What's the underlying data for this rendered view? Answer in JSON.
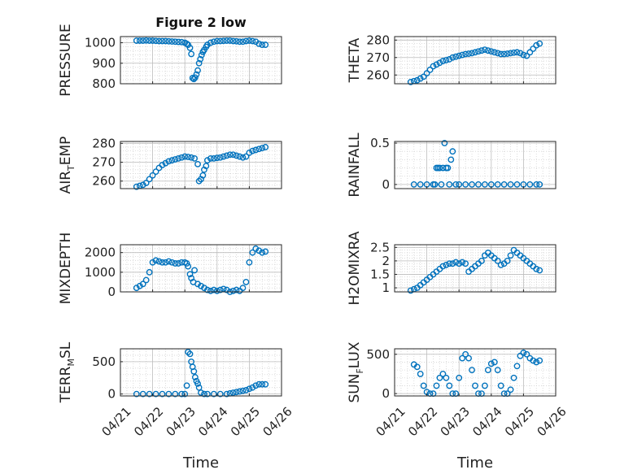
{
  "figure": {
    "title": "Figure 2 low",
    "xlabel": "Time",
    "date_ticks": [
      "04/21",
      "04/22",
      "04/23",
      "04/24",
      "04/25",
      "04/26"
    ],
    "marker_color": "#0072BD",
    "grid": "major and minor, dotted"
  },
  "chart_data": [
    {
      "type": "scatter",
      "ylabel": [
        {
          "t": "PRESSURE"
        }
      ],
      "xlim": [
        "04/21",
        "04/26"
      ],
      "ylim": [
        800,
        1030
      ],
      "yticks": [
        800,
        900,
        1000
      ],
      "x": [
        "04/21 12:00",
        "04/21 14:24",
        "04/21 16:48",
        "04/21 19:12",
        "04/21 21:36",
        "04/22 00:00",
        "04/22 02:24",
        "04/22 04:48",
        "04/22 07:12",
        "04/22 09:36",
        "04/22 12:00",
        "04/22 14:24",
        "04/22 16:48",
        "04/22 19:12",
        "04/22 21:36",
        "04/23 00:00",
        "04/23 01:26",
        "04/23 02:24",
        "04/23 03:50",
        "04/23 04:48",
        "04/23 05:46",
        "04/23 06:43",
        "04/23 07:41",
        "04/23 08:38",
        "04/23 09:36",
        "04/23 10:34",
        "04/23 11:31",
        "04/23 12:29",
        "04/23 13:26",
        "04/23 14:24",
        "04/23 15:50",
        "04/23 16:48",
        "04/23 19:12",
        "04/23 21:36",
        "04/24 00:00",
        "04/24 02:24",
        "04/24 04:48",
        "04/24 07:12",
        "04/24 09:36",
        "04/24 12:00",
        "04/24 14:24",
        "04/24 16:48",
        "04/24 19:12",
        "04/24 21:36",
        "04/25 00:00",
        "04/25 02:24",
        "04/25 04:48",
        "04/25 07:12",
        "04/25 09:36",
        "04/25 12:00"
      ],
      "y": [
        1010,
        1010,
        1010,
        1011,
        1010,
        1010,
        1009,
        1008,
        1008,
        1008,
        1007,
        1006,
        1005,
        1004,
        1003,
        1000,
        995,
        990,
        975,
        945,
        828,
        823,
        830,
        845,
        865,
        900,
        920,
        940,
        955,
        965,
        980,
        990,
        1000,
        1005,
        1008,
        1008,
        1009,
        1010,
        1010,
        1008,
        1007,
        1005,
        1005,
        1008,
        1010,
        1008,
        1005,
        995,
        990,
        990
      ]
    },
    {
      "type": "scatter",
      "ylabel": [
        {
          "t": "THETA"
        }
      ],
      "xlim": [
        "04/21",
        "04/26"
      ],
      "ylim": [
        255,
        282
      ],
      "yticks": [
        260,
        270,
        280
      ],
      "x": [
        "04/21 12:00",
        "04/21 14:24",
        "04/21 16:48",
        "04/21 19:12",
        "04/21 21:36",
        "04/22 00:00",
        "04/22 02:24",
        "04/22 04:48",
        "04/22 07:12",
        "04/22 09:36",
        "04/22 12:00",
        "04/22 14:24",
        "04/22 16:48",
        "04/22 19:12",
        "04/22 21:36",
        "04/23 00:00",
        "04/23 02:24",
        "04/23 04:48",
        "04/23 07:12",
        "04/23 09:36",
        "04/23 12:00",
        "04/23 14:24",
        "04/23 16:48",
        "04/23 19:12",
        "04/23 21:36",
        "04/24 00:00",
        "04/24 02:24",
        "04/24 04:48",
        "04/24 07:12",
        "04/24 09:36",
        "04/24 12:00",
        "04/24 14:24",
        "04/24 16:48",
        "04/24 19:12",
        "04/24 21:36",
        "04/25 00:00",
        "04/25 02:24",
        "04/25 04:48",
        "04/25 07:12",
        "04/25 09:36",
        "04/25 12:00"
      ],
      "y": [
        256,
        256.5,
        257,
        258,
        259,
        261,
        263,
        265,
        266,
        267,
        268,
        268.5,
        269,
        270,
        270.5,
        271,
        271.5,
        272,
        272.2,
        272.5,
        273,
        273.5,
        274,
        274.5,
        274,
        273.5,
        273,
        272.5,
        272,
        272,
        272.2,
        272.5,
        272.8,
        273,
        272.5,
        271.5,
        271,
        273,
        275,
        277,
        278
      ]
    },
    {
      "type": "scatter",
      "ylabel": [
        {
          "t": "AIR"
        },
        {
          "t": "T",
          "sub": true
        },
        {
          "t": "EMP"
        }
      ],
      "xlim": [
        "04/21",
        "04/26"
      ],
      "ylim": [
        256,
        281
      ],
      "yticks": [
        260,
        270,
        280
      ],
      "x": [
        "04/21 12:00",
        "04/21 14:24",
        "04/21 16:48",
        "04/21 19:12",
        "04/21 21:36",
        "04/22 00:00",
        "04/22 02:24",
        "04/22 04:48",
        "04/22 07:12",
        "04/22 09:36",
        "04/22 12:00",
        "04/22 14:24",
        "04/22 16:48",
        "04/22 19:12",
        "04/22 21:36",
        "04/23 00:00",
        "04/23 02:24",
        "04/23 04:48",
        "04/23 07:12",
        "04/23 09:36",
        "04/23 10:34",
        "04/23 12:00",
        "04/23 13:26",
        "04/23 14:24",
        "04/23 15:50",
        "04/23 16:48",
        "04/23 19:12",
        "04/23 21:36",
        "04/24 00:00",
        "04/24 02:24",
        "04/24 04:48",
        "04/24 07:12",
        "04/24 09:36",
        "04/24 12:00",
        "04/24 14:24",
        "04/24 16:48",
        "04/24 19:12",
        "04/24 21:36",
        "04/25 00:00",
        "04/25 02:24",
        "04/25 04:48",
        "04/25 07:12",
        "04/25 09:36",
        "04/25 12:00"
      ],
      "y": [
        257,
        257.5,
        258,
        259,
        261,
        263,
        265,
        267,
        268.5,
        269.5,
        270.5,
        271,
        271.5,
        272,
        272.5,
        273,
        272.8,
        272.5,
        272,
        269,
        260,
        261,
        263,
        266,
        268,
        271,
        272,
        272,
        272.3,
        272.5,
        273,
        273.5,
        274,
        274,
        273.5,
        273,
        272.5,
        273,
        275,
        276,
        276.5,
        277,
        277.5,
        278
      ]
    },
    {
      "type": "scatter",
      "ylabel": [
        {
          "t": "RAINFALL"
        }
      ],
      "xlim": [
        "04/21",
        "04/26"
      ],
      "ylim": [
        -0.05,
        0.52
      ],
      "yticks": [
        0,
        0.5
      ],
      "x": [
        "04/21 14:24",
        "04/21 19:12",
        "04/22 00:00",
        "04/22 04:48",
        "04/22 06:00",
        "04/22 07:12",
        "04/22 08:24",
        "04/22 09:36",
        "04/22 10:48",
        "04/22 12:00",
        "04/22 13:12",
        "04/22 14:24",
        "04/22 15:36",
        "04/22 16:48",
        "04/22 18:00",
        "04/22 19:12",
        "04/22 21:36",
        "04/23 00:00",
        "04/23 04:48",
        "04/23 09:36",
        "04/23 14:24",
        "04/23 19:12",
        "04/24 00:00",
        "04/24 04:48",
        "04/24 09:36",
        "04/24 14:24",
        "04/24 19:12",
        "04/25 00:00",
        "04/25 04:48",
        "04/25 09:36",
        "04/25 12:00"
      ],
      "y": [
        0,
        0,
        0,
        0,
        0,
        0.2,
        0.2,
        0.2,
        0,
        0.2,
        0.5,
        0.2,
        0.2,
        0,
        0.3,
        0.4,
        0,
        0,
        0,
        0,
        0,
        0,
        0,
        0,
        0,
        0,
        0,
        0,
        0,
        0,
        0
      ]
    },
    {
      "type": "scatter",
      "ylabel": [
        {
          "t": "MIXDEPTH"
        }
      ],
      "xlim": [
        "04/21",
        "04/26"
      ],
      "ylim": [
        0,
        2400
      ],
      "yticks": [
        0,
        1000,
        2000
      ],
      "x": [
        "04/21 12:00",
        "04/21 14:24",
        "04/21 16:48",
        "04/21 19:12",
        "04/21 21:36",
        "04/22 00:00",
        "04/22 02:24",
        "04/22 04:48",
        "04/22 07:12",
        "04/22 09:36",
        "04/22 12:00",
        "04/22 14:24",
        "04/22 16:48",
        "04/22 19:12",
        "04/22 21:36",
        "04/23 00:00",
        "04/23 01:26",
        "04/23 02:24",
        "04/23 03:50",
        "04/23 04:48",
        "04/23 06:14",
        "04/23 07:12",
        "04/23 09:36",
        "04/23 12:00",
        "04/23 14:24",
        "04/23 16:48",
        "04/23 19:12",
        "04/23 21:36",
        "04/24 00:00",
        "04/24 02:24",
        "04/24 04:48",
        "04/24 07:12",
        "04/24 09:36",
        "04/24 12:00",
        "04/24 14:24",
        "04/24 16:48",
        "04/24 19:12",
        "04/24 21:36",
        "04/25 00:00",
        "04/25 02:24",
        "04/25 04:48",
        "04/25 07:12",
        "04/25 09:36",
        "04/25 12:00"
      ],
      "y": [
        200,
        300,
        400,
        600,
        1000,
        1500,
        1600,
        1550,
        1500,
        1500,
        1550,
        1500,
        1450,
        1450,
        1500,
        1500,
        1450,
        1300,
        900,
        700,
        500,
        1100,
        400,
        300,
        200,
        100,
        50,
        100,
        50,
        100,
        150,
        100,
        0,
        50,
        100,
        50,
        200,
        500,
        1500,
        2000,
        2200,
        2100,
        2000,
        2050
      ]
    },
    {
      "type": "scatter",
      "ylabel": [
        {
          "t": "H2OMIXRA"
        }
      ],
      "xlim": [
        "04/21",
        "04/26"
      ],
      "ylim": [
        0.85,
        2.6
      ],
      "yticks": [
        1,
        1.5,
        2,
        2.5
      ],
      "x": [
        "04/21 12:00",
        "04/21 14:24",
        "04/21 16:48",
        "04/21 19:12",
        "04/21 21:36",
        "04/22 00:00",
        "04/22 02:24",
        "04/22 04:48",
        "04/22 07:12",
        "04/22 09:36",
        "04/22 12:00",
        "04/22 14:24",
        "04/22 16:48",
        "04/22 19:12",
        "04/22 21:36",
        "04/23 00:00",
        "04/23 02:24",
        "04/23 04:48",
        "04/23 07:12",
        "04/23 09:36",
        "04/23 12:00",
        "04/23 14:24",
        "04/23 16:48",
        "04/23 19:12",
        "04/23 21:36",
        "04/24 00:00",
        "04/24 02:24",
        "04/24 04:48",
        "04/24 07:12",
        "04/24 09:36",
        "04/24 12:00",
        "04/24 14:24",
        "04/24 16:48",
        "04/24 19:12",
        "04/24 21:36",
        "04/25 00:00",
        "04/25 02:24",
        "04/25 04:48",
        "04/25 07:12",
        "04/25 09:36",
        "04/25 12:00"
      ],
      "y": [
        0.9,
        0.95,
        1.0,
        1.1,
        1.2,
        1.3,
        1.4,
        1.5,
        1.6,
        1.7,
        1.8,
        1.85,
        1.9,
        1.9,
        1.95,
        1.9,
        1.95,
        1.9,
        1.6,
        1.7,
        1.8,
        1.9,
        2.0,
        2.2,
        2.3,
        2.2,
        2.1,
        2.0,
        1.85,
        1.9,
        2.0,
        2.2,
        2.4,
        2.3,
        2.2,
        2.1,
        2.0,
        1.9,
        1.8,
        1.7,
        1.65
      ]
    },
    {
      "type": "scatter",
      "ylabel": [
        {
          "t": "TERR"
        },
        {
          "t": "M",
          "sub": true
        },
        {
          "t": "SL"
        }
      ],
      "xlim": [
        "04/21",
        "04/26"
      ],
      "ylim": [
        -30,
        700
      ],
      "yticks": [
        0,
        500
      ],
      "x": [
        "04/21 12:00",
        "04/21 16:48",
        "04/21 21:36",
        "04/22 02:24",
        "04/22 07:12",
        "04/22 12:00",
        "04/22 16:48",
        "04/22 21:36",
        "04/23 00:00",
        "04/23 01:26",
        "04/23 02:24",
        "04/23 03:50",
        "04/23 04:48",
        "04/23 05:46",
        "04/23 06:43",
        "04/23 07:41",
        "04/23 08:38",
        "04/23 09:36",
        "04/23 10:34",
        "04/23 12:00",
        "04/23 14:24",
        "04/23 16:48",
        "04/23 21:36",
        "04/24 02:24",
        "04/24 07:12",
        "04/24 09:36",
        "04/24 12:00",
        "04/24 14:24",
        "04/24 16:48",
        "04/24 19:12",
        "04/24 21:36",
        "04/25 00:00",
        "04/25 02:24",
        "04/25 04:48",
        "04/25 07:12",
        "04/25 09:36",
        "04/25 12:00"
      ],
      "y": [
        0,
        0,
        0,
        0,
        0,
        0,
        0,
        0,
        0,
        130,
        650,
        620,
        500,
        420,
        350,
        260,
        200,
        160,
        100,
        20,
        0,
        0,
        0,
        0,
        0,
        10,
        20,
        30,
        40,
        50,
        60,
        80,
        100,
        130,
        150,
        150,
        150
      ]
    },
    {
      "type": "scatter",
      "ylabel": [
        {
          "t": "SUN"
        },
        {
          "t": "F",
          "sub": true
        },
        {
          "t": "LUX"
        }
      ],
      "xlim": [
        "04/21",
        "04/26"
      ],
      "ylim": [
        -30,
        570
      ],
      "yticks": [
        0,
        500
      ],
      "x": [
        "04/21 14:24",
        "04/21 16:48",
        "04/21 19:12",
        "04/21 21:36",
        "04/22 00:00",
        "04/22 02:24",
        "04/22 04:48",
        "04/22 07:12",
        "04/22 09:36",
        "04/22 12:00",
        "04/22 14:24",
        "04/22 16:48",
        "04/22 19:12",
        "04/22 21:36",
        "04/23 00:00",
        "04/23 02:24",
        "04/23 04:48",
        "04/23 07:12",
        "04/23 09:36",
        "04/23 12:00",
        "04/23 14:24",
        "04/23 16:48",
        "04/23 19:12",
        "04/23 21:36",
        "04/24 00:00",
        "04/24 02:24",
        "04/24 04:48",
        "04/24 07:12",
        "04/24 09:36",
        "04/24 12:00",
        "04/24 14:24",
        "04/24 16:48",
        "04/24 19:12",
        "04/24 21:36",
        "04/25 00:00",
        "04/25 02:24",
        "04/25 04:48",
        "04/25 07:12",
        "04/25 09:36",
        "04/25 12:00"
      ],
      "y": [
        370,
        340,
        250,
        100,
        20,
        0,
        0,
        100,
        200,
        250,
        200,
        100,
        0,
        0,
        200,
        450,
        500,
        450,
        300,
        100,
        0,
        0,
        100,
        300,
        380,
        400,
        300,
        100,
        0,
        0,
        50,
        200,
        350,
        480,
        520,
        500,
        450,
        420,
        400,
        420
      ]
    }
  ]
}
